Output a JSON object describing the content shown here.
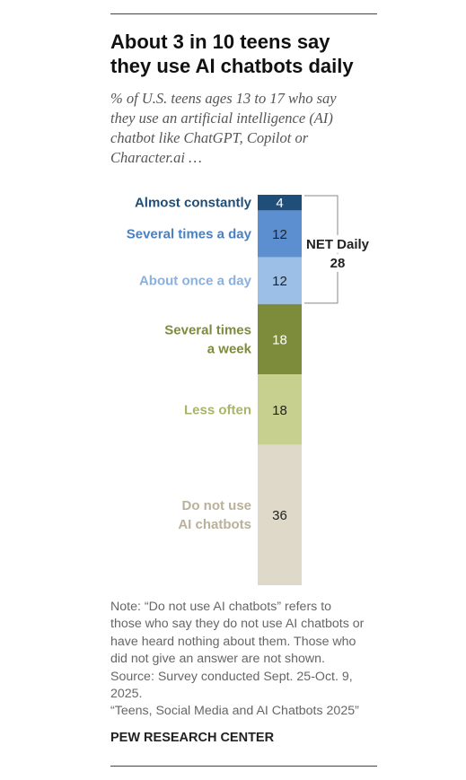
{
  "header": {
    "title_lines": [
      "About 3 in 10 teens say",
      "they use AI chatbots daily"
    ],
    "subtitle_lines": [
      "% of U.S. teens ages 13 to 17 who say",
      "they use an artificial intelligence (AI)",
      "chatbot like ChatGPT, Copilot or",
      "Character.ai …"
    ]
  },
  "chart_data": {
    "type": "bar",
    "stacked": true,
    "orientation": "vertical",
    "categories": [
      "Almost constantly",
      "Several times a day",
      "About once a day",
      "Several times a week",
      "Less often",
      "Do not use AI chatbots"
    ],
    "category_label_lines": [
      [
        "Almost constantly"
      ],
      [
        "Several times a day"
      ],
      [
        "About once a day"
      ],
      [
        "Several times",
        "a week"
      ],
      [
        "Less often"
      ],
      [
        "Do not use",
        "AI chatbots"
      ]
    ],
    "values": [
      4,
      12,
      12,
      18,
      18,
      36
    ],
    "value_labels": [
      "4",
      "12",
      "12",
      "18",
      "18",
      "36"
    ],
    "colors": [
      "#1f4e79",
      "#5b8fd0",
      "#9cbfe8",
      "#7d8c3b",
      "#c7d08e",
      "#ded9c8"
    ],
    "label_colors": [
      "#1f4e79",
      "#4a7fc1",
      "#8bb0dd",
      "#7d8c3b",
      "#a9b46a",
      "#b9b19a"
    ],
    "value_text_colors": [
      "#ffffff",
      "#222222",
      "#222222",
      "#ffffff",
      "#222222",
      "#222222"
    ],
    "bracket": {
      "label_lines": [
        "NET Daily",
        "28"
      ],
      "value": 28,
      "spans": [
        0,
        2
      ]
    }
  },
  "footer": {
    "note_lines": [
      "Note: “Do not use AI chatbots” refers to",
      "those who say they do not use AI chatbots or",
      "have heard nothing about them. Those who",
      "did not give an answer are not shown.",
      "Source: Survey conducted Sept. 25-Oct. 9,",
      "2025.",
      "“Teens, Social Media and AI Chatbots 2025”"
    ],
    "brand": "PEW RESEARCH CENTER"
  }
}
